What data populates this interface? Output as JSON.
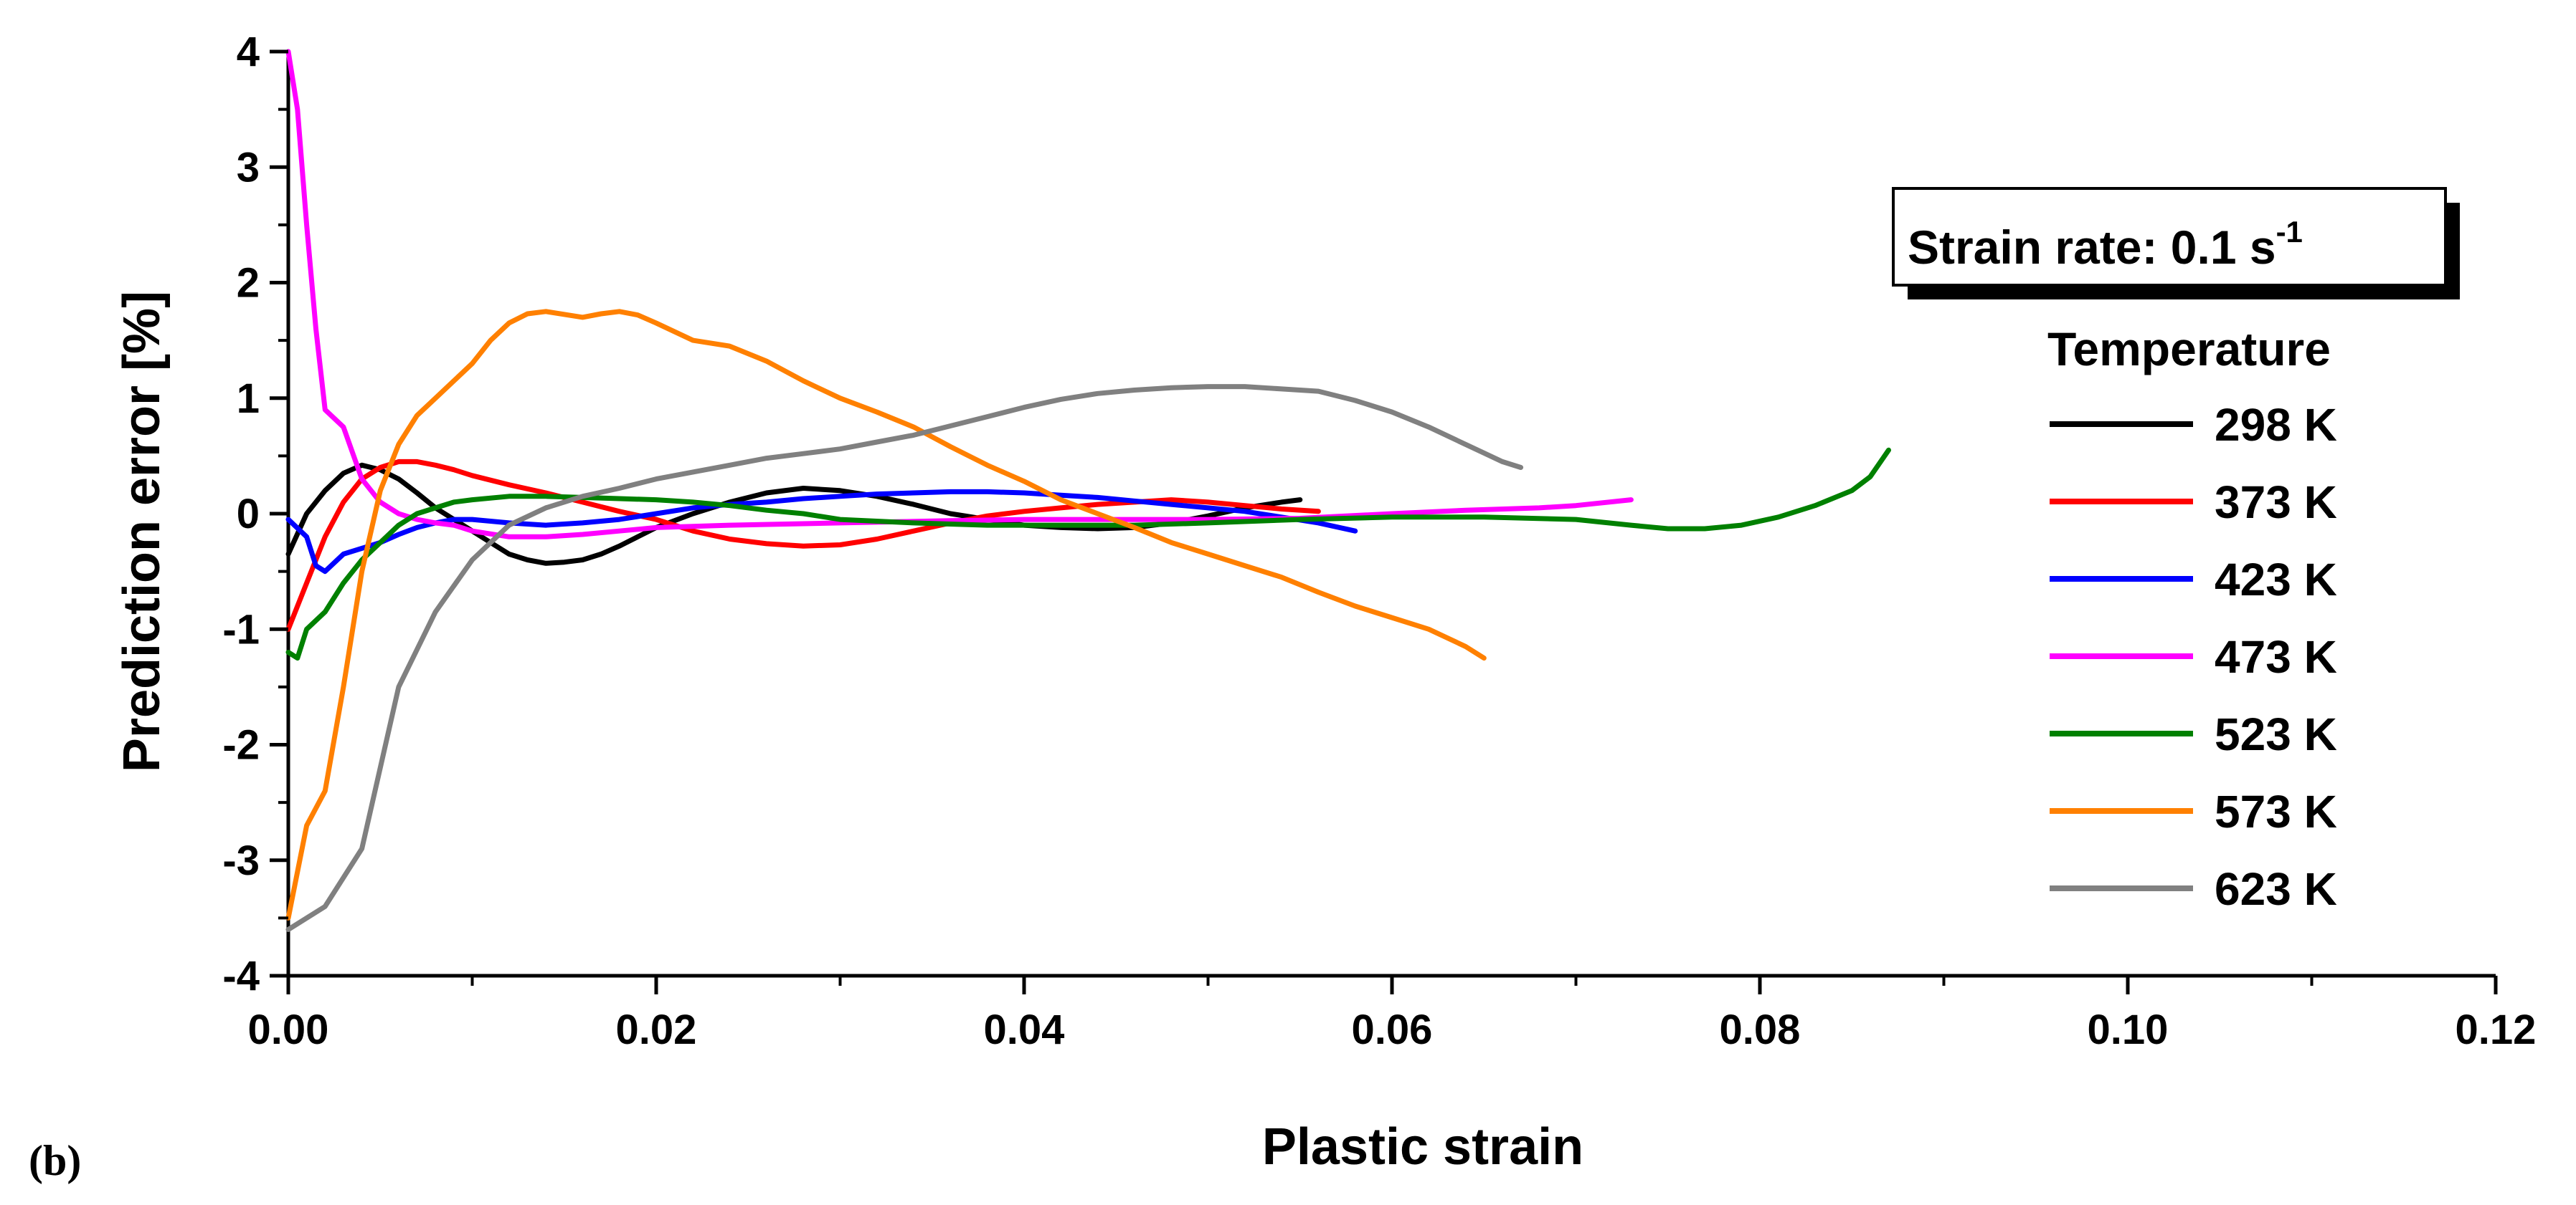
{
  "chart_data": {
    "type": "line",
    "panel_label": "(b)",
    "xlabel": "Plastic strain",
    "ylabel": "Prediction error [%]",
    "xlim": [
      0,
      0.12
    ],
    "ylim": [
      -4,
      4
    ],
    "xticks": [
      0,
      0.02,
      0.04,
      0.06,
      0.08,
      0.1,
      0.12
    ],
    "xtick_labels": [
      "0.00",
      "0.02",
      "0.04",
      "0.06",
      "0.08",
      "0.10",
      "0.12"
    ],
    "yticks": [
      -4,
      -3,
      -2,
      -1,
      0,
      1,
      2,
      3,
      4
    ],
    "ytick_labels": [
      "-4",
      "-3",
      "-2",
      "-1",
      "0",
      "1",
      "2",
      "3",
      "4"
    ],
    "annotation": {
      "text": "Strain rate: 0.1 s",
      "superscript": "-1"
    },
    "legend_title": "Temperature",
    "legend_position": "right",
    "series": [
      {
        "name": "298 K",
        "color": "#000000",
        "points": [
          [
            0,
            -0.35
          ],
          [
            0.001,
            0
          ],
          [
            0.002,
            0.2
          ],
          [
            0.003,
            0.35
          ],
          [
            0.004,
            0.42
          ],
          [
            0.005,
            0.38
          ],
          [
            0.006,
            0.3
          ],
          [
            0.007,
            0.18
          ],
          [
            0.008,
            0.05
          ],
          [
            0.009,
            -0.05
          ],
          [
            0.01,
            -0.15
          ],
          [
            0.011,
            -0.25
          ],
          [
            0.012,
            -0.35
          ],
          [
            0.013,
            -0.4
          ],
          [
            0.014,
            -0.43
          ],
          [
            0.015,
            -0.42
          ],
          [
            0.016,
            -0.4
          ],
          [
            0.017,
            -0.35
          ],
          [
            0.018,
            -0.28
          ],
          [
            0.019,
            -0.2
          ],
          [
            0.02,
            -0.12
          ],
          [
            0.022,
            0.0
          ],
          [
            0.024,
            0.1
          ],
          [
            0.026,
            0.18
          ],
          [
            0.028,
            0.22
          ],
          [
            0.03,
            0.2
          ],
          [
            0.032,
            0.15
          ],
          [
            0.034,
            0.08
          ],
          [
            0.036,
            0.0
          ],
          [
            0.038,
            -0.05
          ],
          [
            0.04,
            -0.1
          ],
          [
            0.042,
            -0.12
          ],
          [
            0.044,
            -0.13
          ],
          [
            0.046,
            -0.12
          ],
          [
            0.048,
            -0.08
          ],
          [
            0.05,
            -0.02
          ],
          [
            0.052,
            0.05
          ],
          [
            0.054,
            0.1
          ],
          [
            0.055,
            0.12
          ]
        ]
      },
      {
        "name": "373 K",
        "color": "#ff0000",
        "points": [
          [
            0,
            -1.0
          ],
          [
            0.001,
            -0.6
          ],
          [
            0.002,
            -0.2
          ],
          [
            0.003,
            0.1
          ],
          [
            0.004,
            0.3
          ],
          [
            0.005,
            0.4
          ],
          [
            0.006,
            0.45
          ],
          [
            0.007,
            0.45
          ],
          [
            0.008,
            0.42
          ],
          [
            0.009,
            0.38
          ],
          [
            0.01,
            0.33
          ],
          [
            0.012,
            0.25
          ],
          [
            0.014,
            0.18
          ],
          [
            0.016,
            0.1
          ],
          [
            0.018,
            0.02
          ],
          [
            0.02,
            -0.05
          ],
          [
            0.022,
            -0.15
          ],
          [
            0.024,
            -0.22
          ],
          [
            0.026,
            -0.26
          ],
          [
            0.028,
            -0.28
          ],
          [
            0.03,
            -0.27
          ],
          [
            0.032,
            -0.22
          ],
          [
            0.034,
            -0.15
          ],
          [
            0.036,
            -0.08
          ],
          [
            0.038,
            -0.02
          ],
          [
            0.04,
            0.02
          ],
          [
            0.042,
            0.05
          ],
          [
            0.044,
            0.08
          ],
          [
            0.046,
            0.1
          ],
          [
            0.048,
            0.12
          ],
          [
            0.05,
            0.1
          ],
          [
            0.052,
            0.07
          ],
          [
            0.054,
            0.04
          ],
          [
            0.056,
            0.02
          ]
        ]
      },
      {
        "name": "423 K",
        "color": "#0000ff",
        "points": [
          [
            0,
            -0.05
          ],
          [
            0.001,
            -0.2
          ],
          [
            0.0015,
            -0.45
          ],
          [
            0.002,
            -0.5
          ],
          [
            0.003,
            -0.35
          ],
          [
            0.004,
            -0.3
          ],
          [
            0.005,
            -0.25
          ],
          [
            0.006,
            -0.18
          ],
          [
            0.007,
            -0.12
          ],
          [
            0.008,
            -0.08
          ],
          [
            0.009,
            -0.05
          ],
          [
            0.01,
            -0.05
          ],
          [
            0.012,
            -0.08
          ],
          [
            0.014,
            -0.1
          ],
          [
            0.016,
            -0.08
          ],
          [
            0.018,
            -0.05
          ],
          [
            0.02,
            0.0
          ],
          [
            0.022,
            0.05
          ],
          [
            0.024,
            0.08
          ],
          [
            0.026,
            0.1
          ],
          [
            0.028,
            0.13
          ],
          [
            0.03,
            0.15
          ],
          [
            0.032,
            0.17
          ],
          [
            0.034,
            0.18
          ],
          [
            0.036,
            0.19
          ],
          [
            0.038,
            0.19
          ],
          [
            0.04,
            0.18
          ],
          [
            0.042,
            0.16
          ],
          [
            0.044,
            0.14
          ],
          [
            0.046,
            0.11
          ],
          [
            0.048,
            0.08
          ],
          [
            0.05,
            0.05
          ],
          [
            0.052,
            0.02
          ],
          [
            0.054,
            -0.03
          ],
          [
            0.056,
            -0.08
          ],
          [
            0.058,
            -0.15
          ]
        ]
      },
      {
        "name": "473 K",
        "color": "#ff00ff",
        "points": [
          [
            0,
            4.0
          ],
          [
            0.0005,
            3.5
          ],
          [
            0.001,
            2.5
          ],
          [
            0.0015,
            1.6
          ],
          [
            0.002,
            0.9
          ],
          [
            0.003,
            0.75
          ],
          [
            0.004,
            0.3
          ],
          [
            0.005,
            0.1
          ],
          [
            0.006,
            0.0
          ],
          [
            0.007,
            -0.05
          ],
          [
            0.008,
            -0.08
          ],
          [
            0.009,
            -0.1
          ],
          [
            0.01,
            -0.15
          ],
          [
            0.012,
            -0.2
          ],
          [
            0.014,
            -0.2
          ],
          [
            0.016,
            -0.18
          ],
          [
            0.018,
            -0.15
          ],
          [
            0.02,
            -0.12
          ],
          [
            0.024,
            -0.1
          ],
          [
            0.03,
            -0.08
          ],
          [
            0.036,
            -0.06
          ],
          [
            0.04,
            -0.05
          ],
          [
            0.044,
            -0.05
          ],
          [
            0.05,
            -0.05
          ],
          [
            0.055,
            -0.04
          ],
          [
            0.06,
            0.0
          ],
          [
            0.064,
            0.03
          ],
          [
            0.068,
            0.05
          ],
          [
            0.07,
            0.07
          ],
          [
            0.073,
            0.12
          ]
        ]
      },
      {
        "name": "523 K",
        "color": "#008000",
        "points": [
          [
            0,
            -1.2
          ],
          [
            0.0005,
            -1.25
          ],
          [
            0.001,
            -1.0
          ],
          [
            0.002,
            -0.85
          ],
          [
            0.003,
            -0.6
          ],
          [
            0.004,
            -0.4
          ],
          [
            0.005,
            -0.25
          ],
          [
            0.006,
            -0.1
          ],
          [
            0.007,
            0.0
          ],
          [
            0.008,
            0.05
          ],
          [
            0.009,
            0.1
          ],
          [
            0.01,
            0.12
          ],
          [
            0.012,
            0.15
          ],
          [
            0.014,
            0.15
          ],
          [
            0.016,
            0.14
          ],
          [
            0.018,
            0.13
          ],
          [
            0.02,
            0.12
          ],
          [
            0.022,
            0.1
          ],
          [
            0.024,
            0.07
          ],
          [
            0.026,
            0.03
          ],
          [
            0.028,
            0.0
          ],
          [
            0.03,
            -0.05
          ],
          [
            0.034,
            -0.08
          ],
          [
            0.038,
            -0.1
          ],
          [
            0.042,
            -0.1
          ],
          [
            0.046,
            -0.1
          ],
          [
            0.05,
            -0.08
          ],
          [
            0.055,
            -0.05
          ],
          [
            0.06,
            -0.03
          ],
          [
            0.065,
            -0.03
          ],
          [
            0.07,
            -0.05
          ],
          [
            0.073,
            -0.1
          ],
          [
            0.075,
            -0.13
          ],
          [
            0.077,
            -0.13
          ],
          [
            0.079,
            -0.1
          ],
          [
            0.081,
            -0.03
          ],
          [
            0.083,
            0.07
          ],
          [
            0.085,
            0.2
          ],
          [
            0.086,
            0.32
          ],
          [
            0.087,
            0.55
          ]
        ]
      },
      {
        "name": "573 K",
        "color": "#ff8000",
        "points": [
          [
            0,
            -3.5
          ],
          [
            0.001,
            -2.7
          ],
          [
            0.002,
            -2.4
          ],
          [
            0.003,
            -1.5
          ],
          [
            0.004,
            -0.5
          ],
          [
            0.005,
            0.2
          ],
          [
            0.006,
            0.6
          ],
          [
            0.007,
            0.85
          ],
          [
            0.008,
            1.0
          ],
          [
            0.009,
            1.15
          ],
          [
            0.01,
            1.3
          ],
          [
            0.011,
            1.5
          ],
          [
            0.012,
            1.65
          ],
          [
            0.013,
            1.73
          ],
          [
            0.014,
            1.75
          ],
          [
            0.016,
            1.7
          ],
          [
            0.017,
            1.73
          ],
          [
            0.018,
            1.75
          ],
          [
            0.019,
            1.72
          ],
          [
            0.02,
            1.65
          ],
          [
            0.022,
            1.5
          ],
          [
            0.024,
            1.45
          ],
          [
            0.026,
            1.32
          ],
          [
            0.028,
            1.15
          ],
          [
            0.03,
            1.0
          ],
          [
            0.032,
            0.88
          ],
          [
            0.034,
            0.75
          ],
          [
            0.036,
            0.58
          ],
          [
            0.038,
            0.42
          ],
          [
            0.04,
            0.28
          ],
          [
            0.042,
            0.12
          ],
          [
            0.044,
            0.0
          ],
          [
            0.046,
            -0.12
          ],
          [
            0.048,
            -0.25
          ],
          [
            0.05,
            -0.35
          ],
          [
            0.052,
            -0.45
          ],
          [
            0.054,
            -0.55
          ],
          [
            0.056,
            -0.68
          ],
          [
            0.058,
            -0.8
          ],
          [
            0.06,
            -0.9
          ],
          [
            0.062,
            -1.0
          ],
          [
            0.064,
            -1.15
          ],
          [
            0.065,
            -1.25
          ]
        ]
      },
      {
        "name": "623 K",
        "color": "#808080",
        "points": [
          [
            0,
            -3.6
          ],
          [
            0.002,
            -3.4
          ],
          [
            0.004,
            -2.9
          ],
          [
            0.006,
            -1.5
          ],
          [
            0.008,
            -0.85
          ],
          [
            0.01,
            -0.4
          ],
          [
            0.012,
            -0.1
          ],
          [
            0.014,
            0.05
          ],
          [
            0.016,
            0.15
          ],
          [
            0.018,
            0.22
          ],
          [
            0.02,
            0.3
          ],
          [
            0.022,
            0.36
          ],
          [
            0.024,
            0.42
          ],
          [
            0.026,
            0.48
          ],
          [
            0.028,
            0.52
          ],
          [
            0.03,
            0.56
          ],
          [
            0.032,
            0.62
          ],
          [
            0.034,
            0.68
          ],
          [
            0.036,
            0.76
          ],
          [
            0.038,
            0.84
          ],
          [
            0.04,
            0.92
          ],
          [
            0.042,
            0.99
          ],
          [
            0.044,
            1.04
          ],
          [
            0.046,
            1.07
          ],
          [
            0.048,
            1.09
          ],
          [
            0.05,
            1.1
          ],
          [
            0.052,
            1.1
          ],
          [
            0.054,
            1.08
          ],
          [
            0.056,
            1.06
          ],
          [
            0.058,
            0.98
          ],
          [
            0.06,
            0.88
          ],
          [
            0.062,
            0.75
          ],
          [
            0.064,
            0.6
          ],
          [
            0.066,
            0.45
          ],
          [
            0.067,
            0.4
          ]
        ]
      }
    ]
  }
}
